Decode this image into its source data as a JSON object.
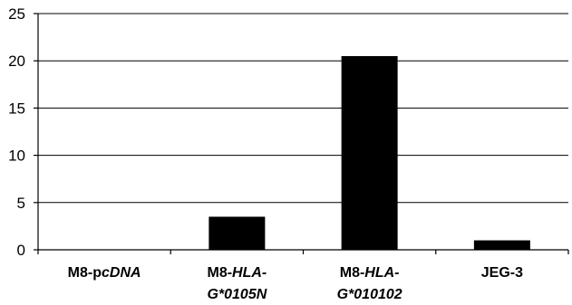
{
  "chart_data": {
    "type": "bar",
    "title": "",
    "xlabel": "",
    "ylabel": "",
    "categories": [
      "M8-pcDNA",
      "M8-HLA-G*0105N",
      "M8-HLA-G*010102",
      "JEG-3"
    ],
    "category_label_parts": [
      [
        {
          "text": "M8-p",
          "italic": false
        },
        {
          "text": "cDNA",
          "italic": true
        }
      ],
      [
        {
          "text": "M8-",
          "italic": false
        },
        {
          "text": "HLA-",
          "italic": true
        },
        {
          "text": "\n",
          "italic": false
        },
        {
          "text": "G*0105N",
          "italic": true
        }
      ],
      [
        {
          "text": "M8-",
          "italic": false
        },
        {
          "text": "HLA-",
          "italic": true
        },
        {
          "text": "\n",
          "italic": false
        },
        {
          "text": "G*010102",
          "italic": true
        }
      ],
      [
        {
          "text": "JEG-3",
          "italic": false
        }
      ]
    ],
    "values": [
      0,
      3.5,
      20.5,
      1
    ],
    "ylim": [
      0,
      25
    ],
    "yticks": [
      0,
      5,
      10,
      15,
      20,
      25
    ],
    "grid": true,
    "bar_color": "#000000"
  }
}
